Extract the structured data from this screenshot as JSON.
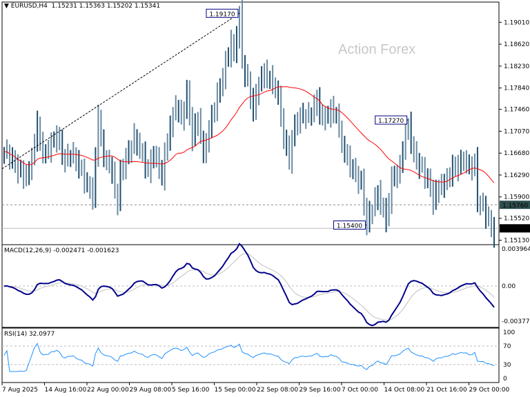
{
  "header": {
    "symbol": "EURUSD,H4",
    "ohlc": "1.15231 1.15363 1.15202 1.15341",
    "icon": "triangle-down-icon"
  },
  "watermark": "Action Forex",
  "colors": {
    "bars": "#6b8ba3",
    "bars_dark": "#1f4f70",
    "ma": "#ff0000",
    "macd": "#00008b",
    "signal": "#c0c0c0",
    "rsi": "#1e90ff",
    "label_border": "#000080"
  },
  "annotations": [
    {
      "text": "1.19170"
    },
    {
      "text": "1.17270"
    },
    {
      "text": "1.15400"
    }
  ],
  "price_axis": {
    "ticks": [
      "1.19010",
      "1.18620",
      "1.18230",
      "1.17840",
      "1.17460",
      "1.17070",
      "1.16680",
      "1.16290",
      "1.15900",
      "1.15520",
      "1.15130"
    ],
    "marker_level": "1.15760",
    "current": "1.15341"
  },
  "macd": {
    "title": "MACD(12,26,9) -0.002471 -0.001623",
    "ticks": [
      "0.003964",
      "0.00",
      "-0.003774"
    ]
  },
  "rsi": {
    "title": "RSI(14) 32.0977",
    "ticks": [
      "100",
      "70",
      "30",
      "0"
    ]
  },
  "time_axis": [
    "7 Aug 2025",
    "14 Aug 16:00",
    "22 Aug 00:00",
    "29 Aug 08:00",
    "5 Sep 16:00",
    "15 Sep 00:00",
    "22 Sep 08:00",
    "29 Sep 16:00",
    "7 Oct 00:00",
    "14 Oct 08:00",
    "21 Oct 16:00",
    "29 Oct 00:00"
  ],
  "chart_data": {
    "type": "ohlc",
    "ylim": [
      1.1505,
      1.1937
    ],
    "close_path": [
      [
        0,
        1.167
      ],
      [
        2,
        1.1664
      ],
      [
        4,
        1.1646
      ],
      [
        7,
        1.1627
      ],
      [
        9,
        1.1634
      ],
      [
        12,
        1.1719
      ],
      [
        14,
        1.1664
      ],
      [
        17,
        1.1683
      ],
      [
        19,
        1.1701
      ],
      [
        22,
        1.1652
      ],
      [
        24,
        1.167
      ],
      [
        27,
        1.1646
      ],
      [
        29,
        1.1621
      ],
      [
        32,
        1.1591
      ],
      [
        34,
        1.1732
      ],
      [
        36,
        1.1658
      ],
      [
        38,
        1.1652
      ],
      [
        41,
        1.1578
      ],
      [
        42,
        1.1634
      ],
      [
        44,
        1.1658
      ],
      [
        47,
        1.1695
      ],
      [
        49,
        1.1677
      ],
      [
        52,
        1.1634
      ],
      [
        54,
        1.167
      ],
      [
        57,
        1.1627
      ],
      [
        59,
        1.1695
      ],
      [
        62,
        1.1756
      ],
      [
        64,
        1.1726
      ],
      [
        66,
        1.1775
      ],
      [
        68,
        1.1695
      ],
      [
        70,
        1.1732
      ],
      [
        72,
        1.1664
      ],
      [
        74,
        1.1713
      ],
      [
        77,
        1.1769
      ],
      [
        79,
        1.1805
      ],
      [
        82,
        1.1867
      ],
      [
        83,
        1.1842
      ],
      [
        85,
        1.1917
      ],
      [
        86,
        1.183
      ],
      [
        88,
        1.1793
      ],
      [
        90,
        1.1744
      ],
      [
        92,
        1.1793
      ],
      [
        94,
        1.1811
      ],
      [
        97,
        1.1793
      ],
      [
        99,
        1.1769
      ],
      [
        101,
        1.1695
      ],
      [
        103,
        1.1658
      ],
      [
        105,
        1.1719
      ],
      [
        108,
        1.1738
      ],
      [
        110,
        1.1732
      ],
      [
        113,
        1.1762
      ],
      [
        115,
        1.1726
      ],
      [
        118,
        1.1744
      ],
      [
        120,
        1.1738
      ],
      [
        122,
        1.1683
      ],
      [
        124,
        1.1658
      ],
      [
        127,
        1.1627
      ],
      [
        129,
        1.1615
      ],
      [
        131,
        1.1542
      ],
      [
        133,
        1.1572
      ],
      [
        135,
        1.1597
      ],
      [
        138,
        1.1548
      ],
      [
        140,
        1.1621
      ],
      [
        143,
        1.164
      ],
      [
        144,
        1.1683
      ],
      [
        146,
        1.1719
      ],
      [
        148,
        1.1664
      ],
      [
        150,
        1.1646
      ],
      [
        153,
        1.1621
      ],
      [
        155,
        1.1584
      ],
      [
        157,
        1.1609
      ],
      [
        159,
        1.1615
      ],
      [
        162,
        1.164
      ],
      [
        164,
        1.1646
      ],
      [
        166,
        1.1658
      ],
      [
        168,
        1.164
      ],
      [
        170,
        1.1652
      ],
      [
        171,
        1.1584
      ],
      [
        173,
        1.1572
      ],
      [
        174,
        1.156
      ],
      [
        176,
        1.1535
      ],
      [
        177,
        1.1523
      ]
    ]
  }
}
